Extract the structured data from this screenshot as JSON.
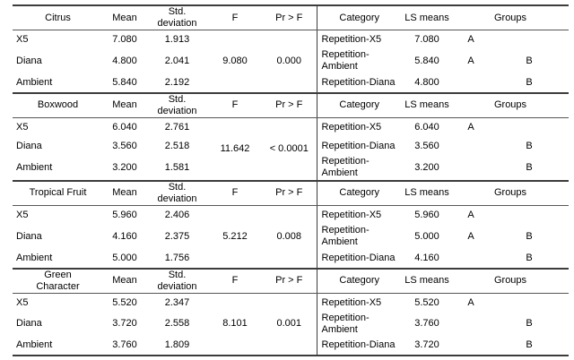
{
  "table": {
    "headers": {
      "mean": "Mean",
      "std": "Std.\ndeviation",
      "f": "F",
      "pr": "Pr > F",
      "category": "Category",
      "ls": "LS means",
      "groups": "Groups"
    },
    "sections": [
      {
        "title": "Citrus",
        "f": "9.080",
        "pr": "0.000",
        "rows": [
          {
            "name": "X5",
            "mean": "7.080",
            "std": "1.913",
            "category": "Repetition-X5",
            "ls": "7.080",
            "group_a": "A",
            "group_b": ""
          },
          {
            "name": "Diana",
            "mean": "4.800",
            "std": "2.041",
            "category": "Repetition-\nAmbient",
            "ls": "5.840",
            "group_a": "A",
            "group_b": "B"
          },
          {
            "name": "Ambient",
            "mean": "5.840",
            "std": "2.192",
            "category": "Repetition-Diana",
            "ls": "4.800",
            "group_a": "",
            "group_b": "B"
          }
        ]
      },
      {
        "title": "Boxwood",
        "f": "11.642",
        "pr": "< 0.0001",
        "rows": [
          {
            "name": "X5",
            "mean": "6.040",
            "std": "2.761",
            "category": "Repetition-X5",
            "ls": "6.040",
            "group_a": "A",
            "group_b": ""
          },
          {
            "name": "Diana",
            "mean": "3.560",
            "std": "2.518",
            "category": "Repetition-Diana",
            "ls": "3.560",
            "group_a": "",
            "group_b": "B"
          },
          {
            "name": "Ambient",
            "mean": "3.200",
            "std": "1.581",
            "category": "Repetition-\nAmbient",
            "ls": "3.200",
            "group_a": "",
            "group_b": "B"
          }
        ]
      },
      {
        "title": "Tropical Fruit",
        "f": "5.212",
        "pr": "0.008",
        "rows": [
          {
            "name": "X5",
            "mean": "5.960",
            "std": "2.406",
            "category": "Repetition-X5",
            "ls": "5.960",
            "group_a": "A",
            "group_b": ""
          },
          {
            "name": "Diana",
            "mean": "4.160",
            "std": "2.375",
            "category": "Repetition-\nAmbient",
            "ls": "5.000",
            "group_a": "A",
            "group_b": "B"
          },
          {
            "name": "Ambient",
            "mean": "5.000",
            "std": "1.756",
            "category": "Repetition-Diana",
            "ls": "4.160",
            "group_a": "",
            "group_b": "B"
          }
        ]
      },
      {
        "title": "Green\nCharacter",
        "f": "8.101",
        "pr": "0.001",
        "rows": [
          {
            "name": "X5",
            "mean": "5.520",
            "std": "2.347",
            "category": "Repetition-X5",
            "ls": "5.520",
            "group_a": "A",
            "group_b": ""
          },
          {
            "name": "Diana",
            "mean": "3.720",
            "std": "2.558",
            "category": "Repetition-\nAmbient",
            "ls": "3.760",
            "group_a": "",
            "group_b": "B"
          },
          {
            "name": "Ambient",
            "mean": "3.760",
            "std": "1.809",
            "category": "Repetition-Diana",
            "ls": "3.720",
            "group_a": "",
            "group_b": "B"
          }
        ]
      }
    ]
  }
}
